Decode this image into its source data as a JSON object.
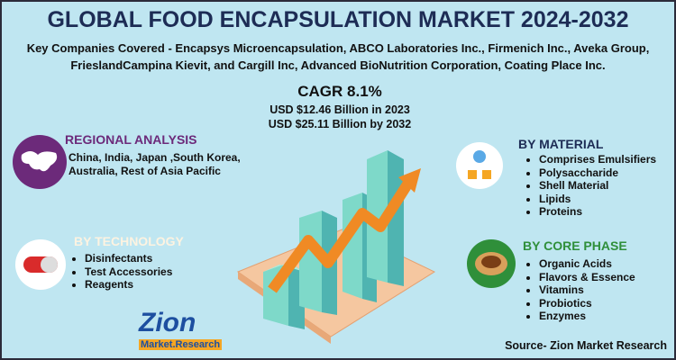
{
  "header": {
    "title": "GLOBAL FOOD ENCAPSULATION MARKET 2024-2032",
    "companies": "Key Companies Covered - Encapsys Microencapsulation, ABCO Laboratories Inc., Firmenich Inc., Aveka Group, FrieslandCampina Kievit, and Cargill Inc, Advanced BioNutrition Corporation, Coating Place Inc."
  },
  "cagr": {
    "title": "CAGR 8.1%",
    "lines": [
      "USD $12.46 Billion  in 2023",
      "USD $25.11 Billion   by 2032"
    ]
  },
  "regional": {
    "title": "REGIONAL ANALYSIS",
    "text": "China, India, Japan ,South Korea, Australia, Rest of Asia Pacific"
  },
  "technology": {
    "title": "BY TECHNOLOGY",
    "items": [
      "Disinfectants",
      "Test Accessories",
      "Reagents"
    ]
  },
  "material": {
    "title": "BY MATERIAL",
    "items": [
      "Comprises Emulsifiers",
      "Polysaccharide",
      "Shell Material",
      "Lipids",
      "Proteins"
    ]
  },
  "core_phase": {
    "title": "BY CORE PHASE",
    "items": [
      "Organic Acids",
      "Flavors & Essence",
      "Vitamins",
      "Probiotics",
      "Enzymes"
    ]
  },
  "logo": {
    "name": "Zion",
    "tagline": "Market.Research"
  },
  "source": "Source- Zion Market Research"
}
